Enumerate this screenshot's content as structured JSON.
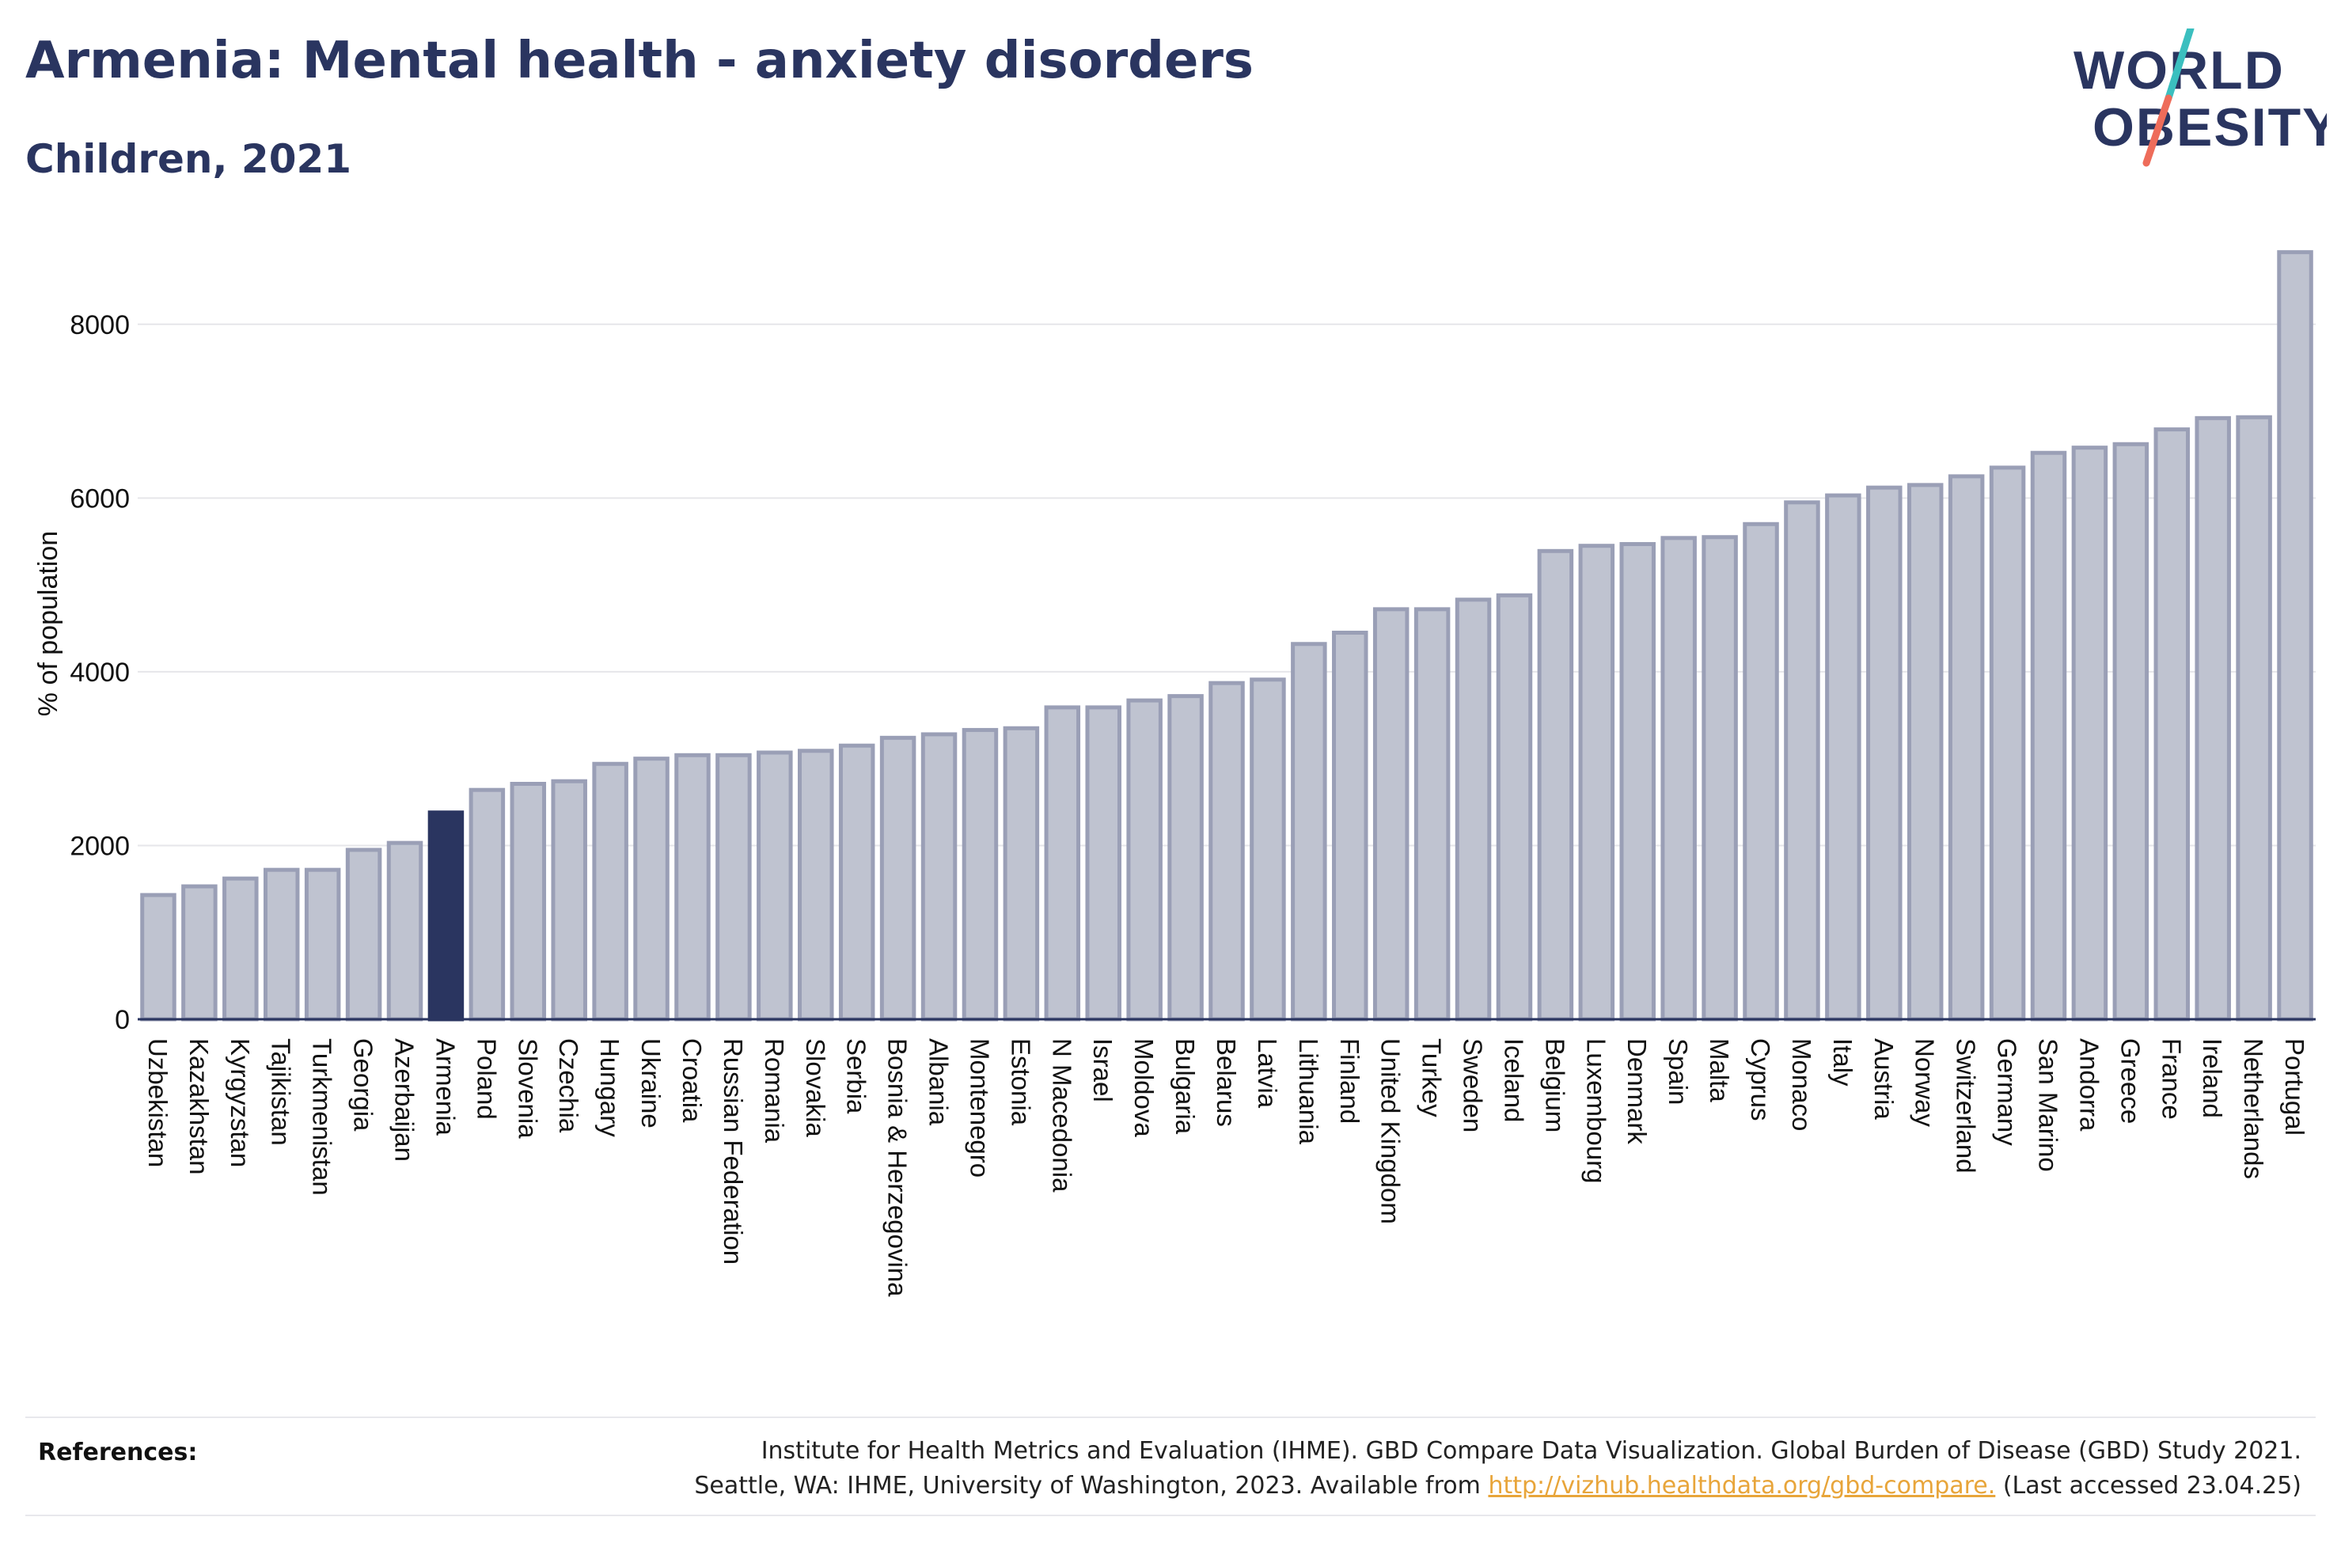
{
  "header": {
    "title": "Armenia: Mental health - anxiety disorders",
    "subtitle": "Children, 2021"
  },
  "logo": {
    "line1": "WORLD",
    "line2": "OBESITY",
    "accent_colors": [
      "#3bbfbf",
      "#ee6c5a"
    ]
  },
  "colors": {
    "bar": "#bfc3d0",
    "bar_border": "#9a9fb6",
    "highlight": "#2a3560",
    "grid": "#e6e6ea",
    "axis": "#2a3560"
  },
  "chart_data": {
    "type": "bar",
    "title": "Armenia: Mental health - anxiety disorders",
    "subtitle": "Children, 2021",
    "xlabel": "",
    "ylabel": "% of population",
    "ylim": [
      0,
      9000
    ],
    "yticks": [
      0,
      2000,
      4000,
      6000,
      8000
    ],
    "grid": true,
    "highlight": "Armenia",
    "categories": [
      "Uzbekistan",
      "Kazakhstan",
      "Kyrgyzstan",
      "Tajikistan",
      "Turkmenistan",
      "Georgia",
      "Azerbaijan",
      "Armenia",
      "Poland",
      "Slovenia",
      "Czechia",
      "Hungary",
      "Ukraine",
      "Croatia",
      "Russian Federation",
      "Romania",
      "Slovakia",
      "Serbia",
      "Bosnia & Herzegovina",
      "Albania",
      "Montenegro",
      "Estonia",
      "N Macedonia",
      "Israel",
      "Moldova",
      "Bulgaria",
      "Belarus",
      "Latvia",
      "Lithuania",
      "Finland",
      "United Kingdom",
      "Turkey",
      "Sweden",
      "Iceland",
      "Belgium",
      "Luxembourg",
      "Denmark",
      "Spain",
      "Malta",
      "Cyprus",
      "Monaco",
      "Italy",
      "Austria",
      "Norway",
      "Switzerland",
      "Germany",
      "San Marino",
      "Andorra",
      "Greece",
      "France",
      "Ireland",
      "Netherlands",
      "Portugal"
    ],
    "values": [
      1430,
      1530,
      1620,
      1720,
      1720,
      1950,
      2030,
      2380,
      2640,
      2710,
      2740,
      2940,
      3000,
      3040,
      3040,
      3070,
      3090,
      3150,
      3240,
      3280,
      3330,
      3350,
      3590,
      3590,
      3670,
      3720,
      3870,
      3910,
      4320,
      4450,
      4720,
      4720,
      4830,
      4880,
      5390,
      5450,
      5470,
      5540,
      5550,
      5700,
      5950,
      6030,
      6120,
      6150,
      6250,
      6350,
      6520,
      6580,
      6620,
      6790,
      6920,
      6930,
      8830
    ]
  },
  "references": {
    "label": "References:",
    "line1": "Institute for Health Metrics and Evaluation (IHME). GBD Compare Data Visualization. Global Burden of Disease (GBD) Study 2021.",
    "line2_before": "Seattle, WA: IHME, University of Washington, 2023. Available from",
    "link": "http://vizhub.healthdata.org/gbd-compare.",
    "line2_after": "(Last accessed 23.04.25)"
  }
}
